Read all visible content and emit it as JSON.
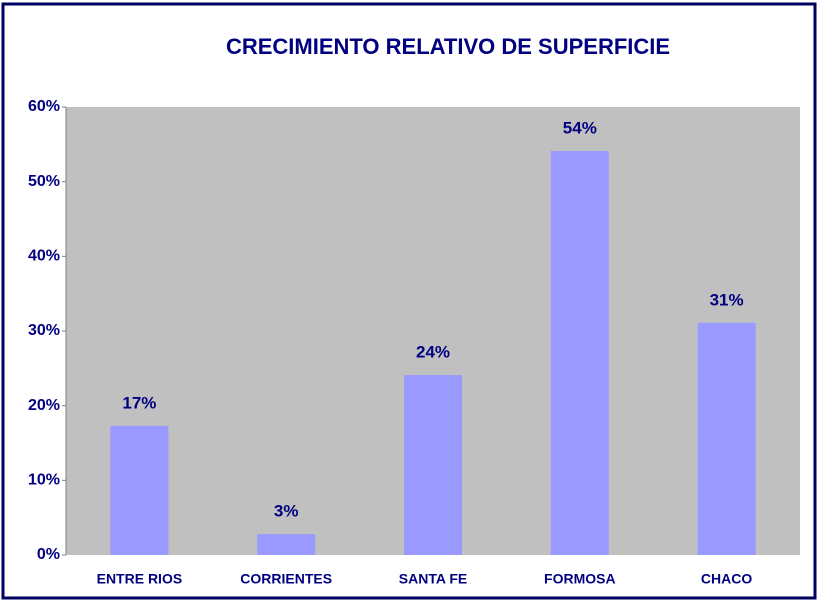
{
  "chart_data": {
    "type": "bar",
    "title": "CRECIMIENTO RELATIVO DE SUPERFICIE",
    "categories": [
      "ENTRE RIOS",
      "CORRIENTES",
      "SANTA FE",
      "FORMOSA",
      "CHACO"
    ],
    "values": [
      17.3,
      2.8,
      24.1,
      54.1,
      31.1
    ],
    "value_labels": [
      "17%",
      "3%",
      "24%",
      "54%",
      "31%"
    ],
    "color": "#9999ff",
    "ylim": [
      0,
      60
    ],
    "yticks": [
      {
        "value": 0,
        "label": "0%"
      },
      {
        "value": 10,
        "label": "10%"
      },
      {
        "value": 20,
        "label": "20%"
      },
      {
        "value": 30,
        "label": "30%"
      },
      {
        "value": 40,
        "label": "40%"
      },
      {
        "value": 50,
        "label": "50%"
      },
      {
        "value": 60,
        "label": "60%"
      }
    ],
    "grid": false
  }
}
